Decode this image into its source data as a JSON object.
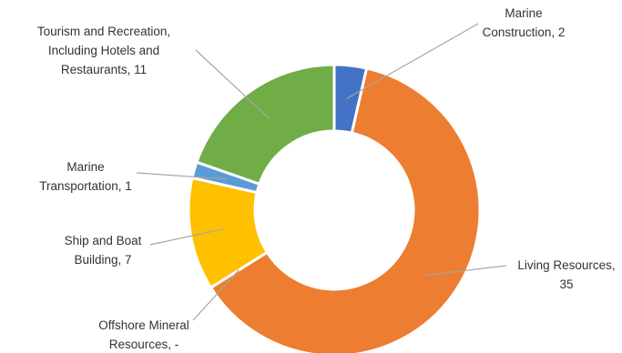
{
  "chart_data": {
    "type": "pie",
    "variant": "doughnut",
    "title": "",
    "slices": [
      {
        "name": "Marine Construction",
        "value": 2,
        "color": "#4472C4",
        "label_lines": [
          "Marine",
          "Construction,  2"
        ]
      },
      {
        "name": "Living Resources",
        "value": 35,
        "color": "#ED7D31",
        "label_lines": [
          "Living Resources,",
          "35"
        ]
      },
      {
        "name": "Offshore Mineral Resources",
        "value": 0,
        "color": "#A5A5A5",
        "label_lines": [
          "Offshore Mineral",
          "Resources,  -"
        ]
      },
      {
        "name": "Ship and Boat Building",
        "value": 7,
        "color": "#FFC000",
        "label_lines": [
          "Ship and Boat",
          "Building,  7"
        ]
      },
      {
        "name": "Marine Transportation",
        "value": 1,
        "color": "#5B9BD5",
        "label_lines": [
          "Marine",
          "Transportation,  1"
        ]
      },
      {
        "name": "Tourism and Recreation, Including Hotels and Restaurants",
        "value": 11,
        "color": "#70AD47",
        "label_lines": [
          "Tourism and Recreation,",
          "Including Hotels and",
          "Restaurants,  11"
        ]
      }
    ],
    "legend": "none",
    "data_labels": "outside with leader lines"
  }
}
